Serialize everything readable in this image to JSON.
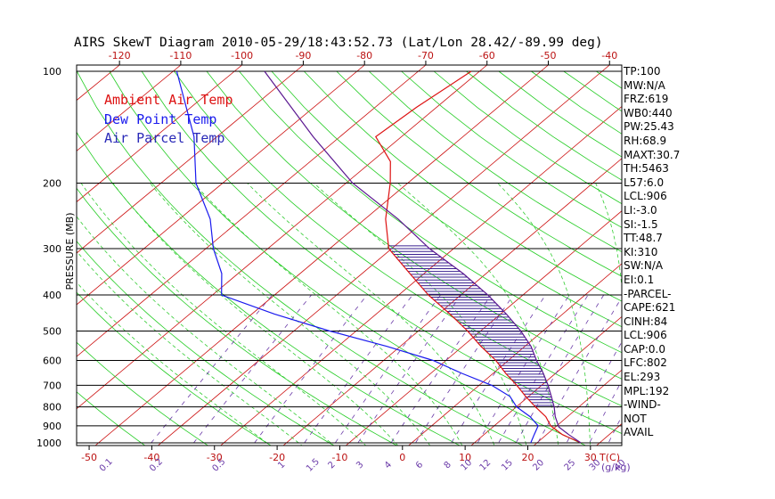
{
  "colors": {
    "ambient": "#dd1111",
    "dewpoint": "#1a1aee",
    "parcel": "#5a1790",
    "isotherm": "#cc1010",
    "dry_adiabat": "#22cc22",
    "moist_adiabat": "#33cc33",
    "mixing_ratio": "#6a3aa8",
    "isobar": "#000000",
    "hatch": "#3a2090",
    "scale_text": "#bb1111"
  },
  "chart_data": {
    "type": "line",
    "title": "AIRS SkewT Diagram 2010-05-29/18:43:52.73 (Lat/Lon 28.42/-89.99 deg)",
    "ylabel": "PRESSURE (MB)",
    "xlabel": "T(C)",
    "mixing_ratio_unit": "(g/kg)",
    "y_scale": "log",
    "ylim": [
      1050,
      100
    ],
    "bottom_xlim": [
      -52,
      35
    ],
    "top_xlim": [
      -127,
      -38
    ],
    "grid": true,
    "legend_position": "top-left",
    "pressure_ticks": [
      100,
      200,
      300,
      400,
      500,
      600,
      700,
      800,
      900,
      1000
    ],
    "bottom_temp_ticks": [
      -50,
      -40,
      -30,
      -20,
      -10,
      0,
      10,
      20,
      30
    ],
    "top_temp_ticks": [
      -120,
      -110,
      -100,
      -90,
      -80,
      -70,
      -60,
      -50,
      -40
    ],
    "mixing_ratio_labels": [
      "0.1",
      "0.2",
      "0.5",
      "1",
      "1.5",
      "2",
      "3",
      "4",
      "6",
      "8",
      "10",
      "12",
      "15",
      "20",
      "25",
      "30",
      "40"
    ],
    "mixing_ratio_positions": [
      -47,
      -39,
      -29,
      -19,
      -14,
      -11,
      -6.5,
      -2,
      3,
      7.5,
      10.5,
      13.5,
      17,
      22,
      27,
      31,
      35
    ],
    "series": [
      {
        "name": "Ambient Air Temp",
        "pressure": [
          1000,
          950,
          900,
          850,
          800,
          750,
          700,
          650,
          600,
          550,
          500,
          450,
          400,
          350,
          300,
          250,
          200,
          175,
          150,
          125,
          100
        ],
        "temp": [
          27,
          22.5,
          19,
          16.5,
          13,
          9.5,
          6,
          2,
          -2,
          -7,
          -12,
          -18,
          -25,
          -32,
          -40,
          -46,
          -52,
          -56,
          -63,
          -62,
          -60
        ]
      },
      {
        "name": "Dew Point Temp",
        "pressure": [
          1000,
          950,
          900,
          850,
          800,
          750,
          700,
          650,
          600,
          550,
          500,
          450,
          400,
          350,
          300,
          250,
          200,
          150,
          100
        ],
        "temp": [
          19,
          18,
          17,
          14,
          10,
          7,
          2,
          -5,
          -12,
          -22,
          -34,
          -46,
          -58,
          -62,
          -68,
          -74,
          -83,
          -92,
          -107
        ]
      },
      {
        "name": "Air Parcel Temp",
        "pressure": [
          1000,
          950,
          906,
          850,
          800,
          750,
          700,
          650,
          600,
          550,
          500,
          450,
          400,
          350,
          300,
          250,
          200,
          150,
          100
        ],
        "temp": [
          27,
          23.5,
          20.5,
          18,
          16,
          13.6,
          11,
          8,
          4.5,
          1,
          -3.5,
          -9,
          -15.5,
          -23.5,
          -33.5,
          -44,
          -58,
          -73,
          -93
        ]
      }
    ],
    "dry_adiabats_theta_k": [
      230,
      240,
      250,
      260,
      270,
      280,
      290,
      300,
      310,
      320,
      330,
      340,
      350,
      360,
      370,
      380,
      390,
      400,
      410,
      420,
      430,
      440,
      450,
      460,
      470,
      480,
      490,
      500,
      510,
      520,
      530
    ],
    "moist_adiabats_start_c": [
      -20,
      -15,
      -10,
      -5,
      0,
      5,
      10,
      15,
      20,
      25,
      30,
      35
    ],
    "mixing_ratio_values": [
      0.1,
      0.2,
      0.5,
      1,
      1.5,
      2,
      3,
      4,
      6,
      8,
      10,
      12,
      15,
      20,
      25,
      30,
      40
    ],
    "cape_region": {
      "from_pressure": 802,
      "to_pressure": 293
    }
  },
  "stats": [
    "TP:100",
    "MW:N/A",
    "FRZ:619",
    "WB0:440",
    "PW:25.43",
    "RH:68.9",
    "MAXT:30.7",
    "TH:5463",
    "L57:6.0",
    "LCL:906",
    "LI:-3.0",
    "SI:-1.5",
    "TT:48.7",
    "KI:310",
    "SW:N/A",
    "EI:0.1",
    "-PARCEL-",
    "CAPE:621",
    "CINH:84",
    "LCL:906",
    "CAP:0.0",
    "LFC:802",
    "EL:293",
    "MPL:192",
    "-WIND-",
    "NOT",
    "AVAIL"
  ]
}
